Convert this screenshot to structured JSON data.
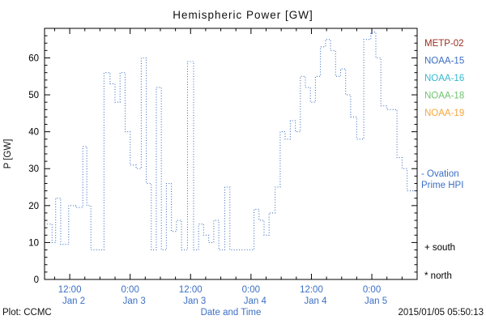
{
  "title": "Hemispheric Power [GW]",
  "footer": {
    "plot_credit": "Plot: CCMC",
    "timestamp": "2015/01/05 05:50:13"
  },
  "colors": {
    "line": "#3c6fc4",
    "x_label": "#3c6fc4",
    "axis": "#000000",
    "background": "#ffffff"
  },
  "legend": {
    "satellites": [
      {
        "label": "METP-02",
        "color": "#9b2d1f"
      },
      {
        "label": "NOAA-15",
        "color": "#3c6fc4"
      },
      {
        "label": "NOAA-16",
        "color": "#35b8cf"
      },
      {
        "label": "NOAA-18",
        "color": "#6fc46f"
      },
      {
        "label": "NOAA-19",
        "color": "#f5a63c"
      }
    ],
    "model_label_lines": [
      "- Ovation",
      "Prime HPI"
    ],
    "model_color": "#3c6fc4",
    "marker_south": "+ south",
    "marker_north": "* north"
  },
  "chart_data": {
    "type": "line",
    "line_style": "dotted-step",
    "title": "Hemispheric Power [GW]",
    "xlabel": "Date and Time",
    "ylabel": "P [GW]",
    "x_unit": "hours since 2015-01-02 00:00",
    "xlim_hours": [
      7,
      81
    ],
    "ylim": [
      0,
      68
    ],
    "grid": false,
    "legend_position": "right-outside",
    "y_ticks": [
      0,
      10,
      20,
      30,
      40,
      50,
      60
    ],
    "x_ticks": [
      {
        "hours": 12,
        "time": "12:00",
        "date": "Jan 2"
      },
      {
        "hours": 24,
        "time": "0:00",
        "date": "Jan 3"
      },
      {
        "hours": 36,
        "time": "12:00",
        "date": "Jan 3"
      },
      {
        "hours": 48,
        "time": "0:00",
        "date": "Jan 4"
      },
      {
        "hours": 60,
        "time": "12:00",
        "date": "Jan 4"
      },
      {
        "hours": 72,
        "time": "0:00",
        "date": "Jan 5"
      }
    ],
    "series": [
      {
        "name": "Ovation Prime HPI",
        "color": "#3c6fc4",
        "points_hours_gw": [
          [
            7,
            15
          ],
          [
            8.5,
            10
          ],
          [
            9.2,
            22
          ],
          [
            10.2,
            9.5
          ],
          [
            11.8,
            20
          ],
          [
            13.2,
            19.5
          ],
          [
            14.6,
            36
          ],
          [
            15.4,
            20
          ],
          [
            16.2,
            8
          ],
          [
            18.8,
            56
          ],
          [
            20,
            53
          ],
          [
            21,
            48
          ],
          [
            22,
            56
          ],
          [
            23,
            40
          ],
          [
            24,
            31
          ],
          [
            25.2,
            30
          ],
          [
            26.2,
            60
          ],
          [
            27.2,
            26
          ],
          [
            28.2,
            8
          ],
          [
            29.2,
            52
          ],
          [
            30.2,
            8
          ],
          [
            31.2,
            26
          ],
          [
            32.2,
            13
          ],
          [
            33.2,
            16
          ],
          [
            34.2,
            8
          ],
          [
            35.4,
            59
          ],
          [
            36.6,
            8
          ],
          [
            37.6,
            15
          ],
          [
            38.6,
            12
          ],
          [
            39.6,
            10
          ],
          [
            40.6,
            16
          ],
          [
            41.6,
            8
          ],
          [
            42.8,
            25
          ],
          [
            43.8,
            8
          ],
          [
            45,
            8
          ],
          [
            48.6,
            19
          ],
          [
            49.6,
            16
          ],
          [
            50.6,
            12
          ],
          [
            51.6,
            18
          ],
          [
            52.8,
            25
          ],
          [
            53.8,
            40
          ],
          [
            54.8,
            38
          ],
          [
            55.8,
            43
          ],
          [
            56.8,
            40
          ],
          [
            57.8,
            55
          ],
          [
            58.8,
            52
          ],
          [
            59.8,
            48
          ],
          [
            60.8,
            55
          ],
          [
            61.8,
            63
          ],
          [
            62.8,
            65
          ],
          [
            63.8,
            62
          ],
          [
            64.8,
            55
          ],
          [
            65.8,
            57
          ],
          [
            66.8,
            50
          ],
          [
            67.8,
            44
          ],
          [
            69,
            38
          ],
          [
            70.4,
            65
          ],
          [
            71.8,
            67
          ],
          [
            72.8,
            60
          ],
          [
            73.8,
            47
          ],
          [
            75,
            46
          ],
          [
            77,
            33
          ],
          [
            78,
            30
          ],
          [
            79,
            24
          ]
        ]
      }
    ]
  }
}
